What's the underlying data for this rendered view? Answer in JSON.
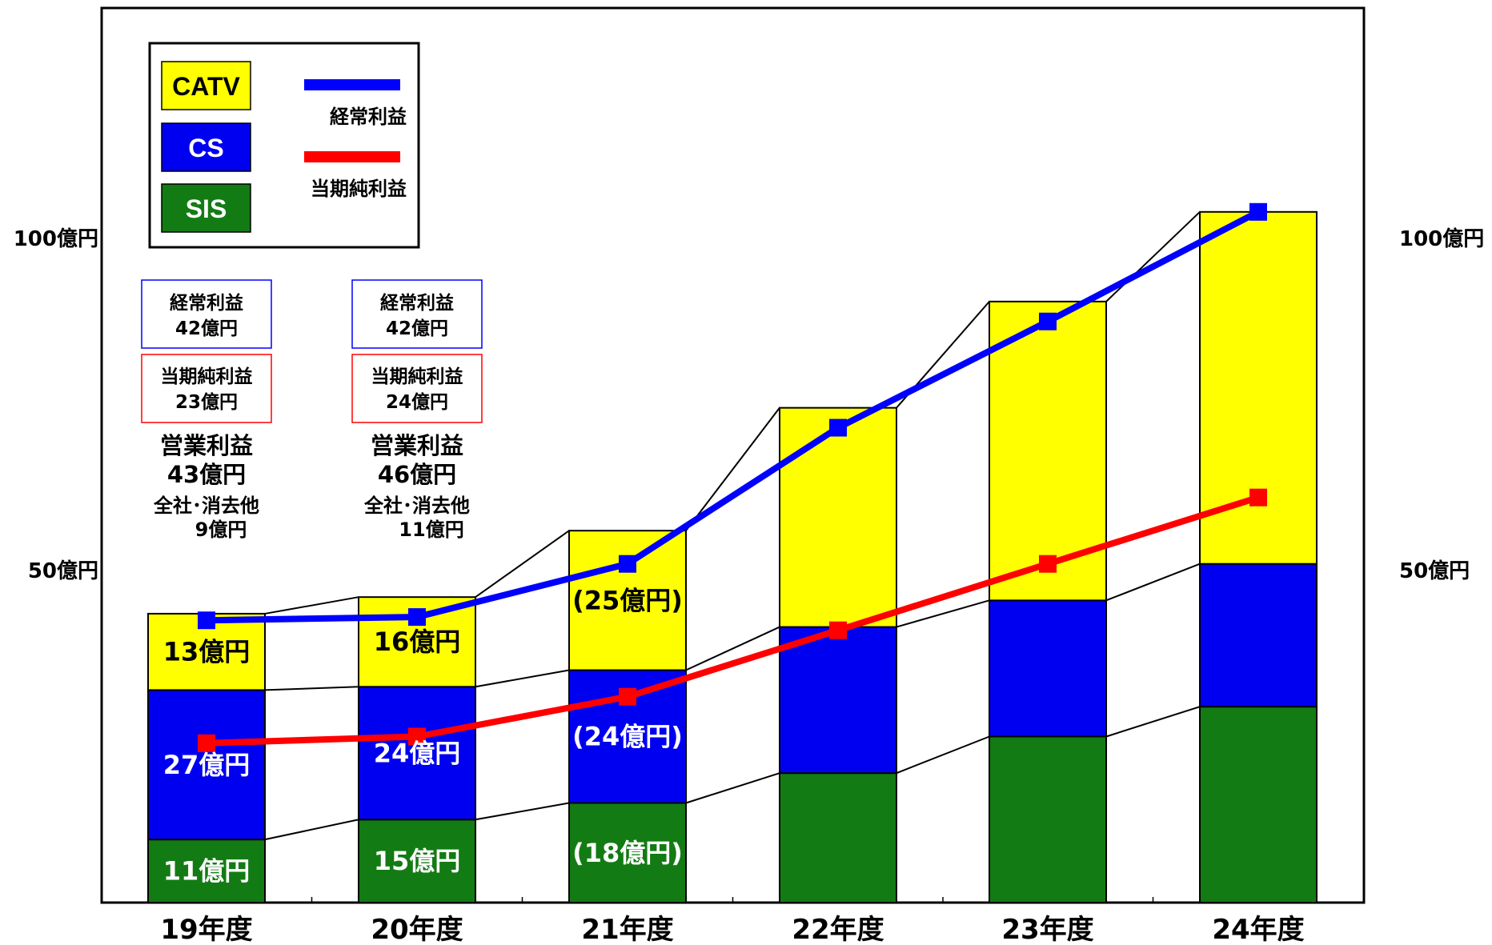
{
  "chart_data": {
    "type": "bar",
    "stacked": true,
    "categories": [
      "19年度",
      "20年度",
      "21年度",
      "22年度",
      "23年度",
      "24年度"
    ],
    "ylim": [
      0,
      112
    ],
    "y_tick_labels": [
      {
        "value": 50,
        "label": "50億円"
      },
      {
        "value": 100,
        "label": "100億円"
      }
    ],
    "series": [
      {
        "name": "SIS",
        "kind": "bar",
        "color": "#137b13",
        "label_color": "#ffffff",
        "values": [
          9.5,
          12.5,
          15,
          19.5,
          25,
          29.5
        ],
        "labels": [
          "11億円",
          "15億円",
          "(18億円)",
          "",
          "",
          ""
        ]
      },
      {
        "name": "CS",
        "kind": "bar",
        "color": "#0000f0",
        "label_color": "#ffffff",
        "values": [
          22.5,
          20,
          20,
          22,
          20.5,
          21.5
        ],
        "labels": [
          "27億円",
          "24億円",
          "(24億円)",
          "",
          "",
          ""
        ]
      },
      {
        "name": "CATV",
        "kind": "bar",
        "color": "#ffff00",
        "label_color": "#000000",
        "values": [
          11.5,
          13.5,
          21,
          33,
          45,
          53
        ],
        "labels": [
          "13億円",
          "16億円",
          "(25億円)",
          "",
          "",
          ""
        ]
      },
      {
        "name": "経常利益",
        "kind": "line",
        "color": "#0000ff",
        "values": [
          42.5,
          43,
          51,
          71.5,
          87.5,
          104
        ]
      },
      {
        "name": "当期純利益",
        "kind": "line",
        "color": "#ff0000",
        "values": [
          24,
          25,
          31,
          41,
          51,
          61
        ]
      }
    ],
    "legend": {
      "position": "top-left",
      "swatches": [
        {
          "label": "CATV",
          "color": "#ffff00",
          "text_color": "#000000"
        },
        {
          "label": "CS",
          "color": "#0000f0",
          "text_color": "#ffffff"
        },
        {
          "label": "SIS",
          "color": "#137b13",
          "text_color": "#ffffff"
        }
      ],
      "lines": [
        {
          "label": "経常利益",
          "color": "#0000ff"
        },
        {
          "label": "当期純利益",
          "color": "#ff0000"
        }
      ]
    },
    "annotations": [
      {
        "category": "19年度",
        "ordinary_box": {
          "lines": [
            "経常利益",
            "42億円"
          ],
          "border": "#0000ff"
        },
        "net_box": {
          "lines": [
            "当期純利益",
            "23億円"
          ],
          "border": "#ff0000"
        },
        "operating": [
          "営業利益",
          "43億円"
        ],
        "corporate": [
          "全社･消去他",
          "9億円"
        ]
      },
      {
        "category": "20年度",
        "ordinary_box": {
          "lines": [
            "経常利益",
            "42億円"
          ],
          "border": "#0000ff"
        },
        "net_box": {
          "lines": [
            "当期純利益",
            "24億円"
          ],
          "border": "#ff0000"
        },
        "operating": [
          "営業利益",
          "46億円"
        ],
        "corporate": [
          "全社･消去他",
          "11億円"
        ]
      }
    ]
  }
}
